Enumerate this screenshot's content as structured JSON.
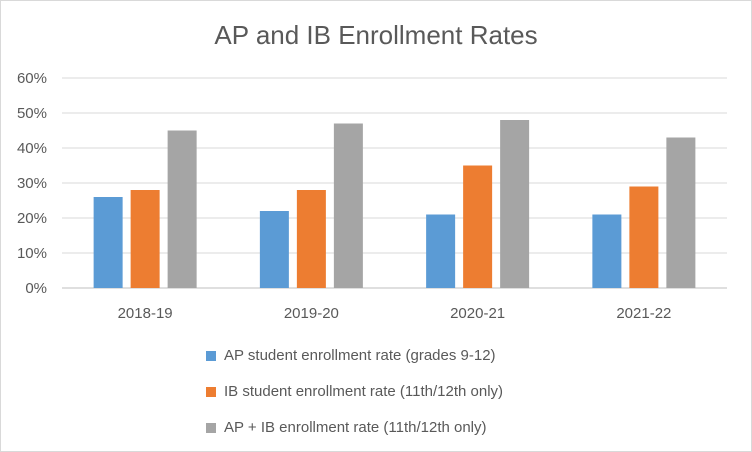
{
  "chart_data": {
    "type": "bar",
    "title": "AP and IB Enrollment Rates",
    "xlabel": "",
    "ylabel": "",
    "categories": [
      "2018-19",
      "2019-20",
      "2020-21",
      "2021-22"
    ],
    "series": [
      {
        "name": "AP student enrollment rate (grades 9-12)",
        "color": "#5b9bd5",
        "values": [
          0.26,
          0.22,
          0.21,
          0.21
        ]
      },
      {
        "name": "IB student enrollment rate (11th/12th only)",
        "color": "#ed7d31",
        "values": [
          0.28,
          0.28,
          0.35,
          0.29
        ]
      },
      {
        "name": "AP + IB enrollment rate (11th/12th only)",
        "color": "#a5a5a5",
        "values": [
          0.45,
          0.47,
          0.48,
          0.43
        ]
      }
    ],
    "yticks": [
      "0%",
      "10%",
      "20%",
      "30%",
      "40%",
      "50%",
      "60%"
    ],
    "ylim": [
      0,
      0.6
    ],
    "grid": true,
    "legend_position": "bottom"
  }
}
